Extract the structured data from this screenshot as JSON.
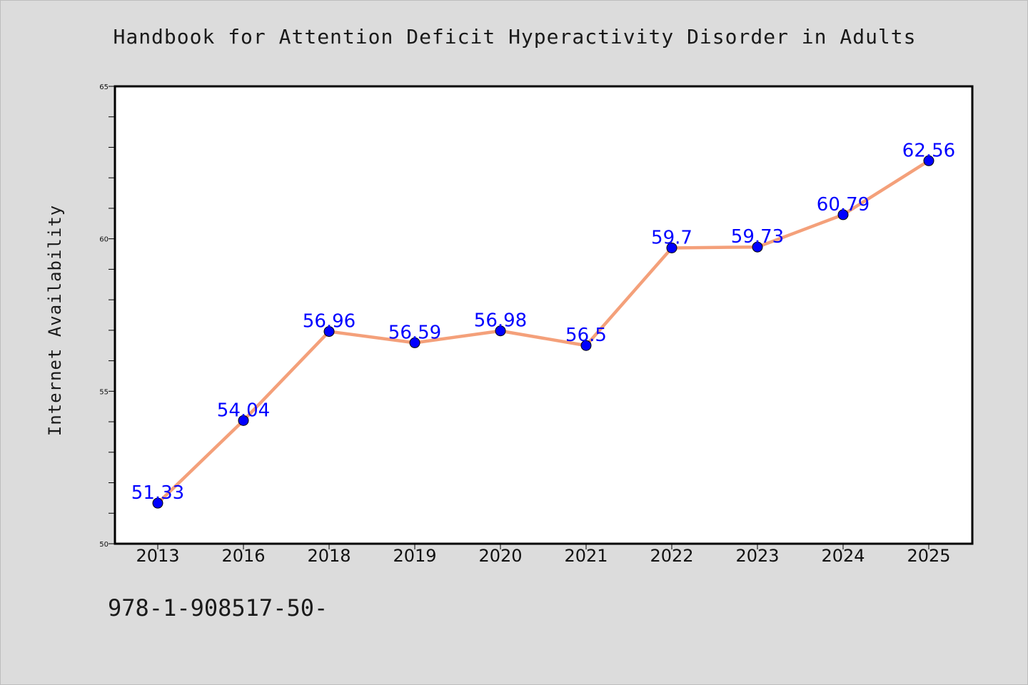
{
  "chart_data": {
    "type": "line",
    "title": "Handbook for Attention Deficit Hyperactivity Disorder in Adults",
    "xlabel": "",
    "ylabel": "Internet Availability",
    "categories": [
      "2013",
      "2016",
      "2018",
      "2019",
      "2020",
      "2021",
      "2022",
      "2023",
      "2024",
      "2025"
    ],
    "series": [
      {
        "values": [
          51.33,
          54.04,
          56.96,
          56.59,
          56.98,
          56.5,
          59.7,
          59.73,
          60.79,
          62.56
        ]
      }
    ],
    "data_labels": [
      "51.33",
      "54.04",
      "56.96",
      "56.59",
      "56.98",
      "56.5",
      "59.7",
      "59.73",
      "60.79",
      "62.56"
    ],
    "ylim": [
      50,
      65
    ],
    "y_ticks": [
      "50",
      "55",
      "60",
      "65"
    ],
    "y_minor_step": 1,
    "grid": false,
    "colors": {
      "line": "#f4a07a",
      "marker": "#0000ff",
      "data_label": "#0000ff",
      "background": "#dcdcdc",
      "plot_background": "#ffffff"
    }
  },
  "footer": {
    "text": "978-1-908517-50-"
  }
}
